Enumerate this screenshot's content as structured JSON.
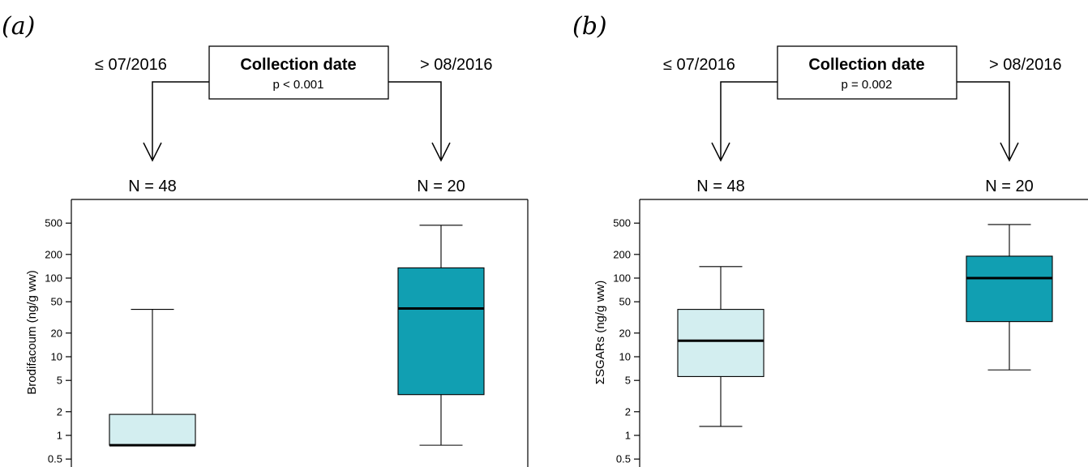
{
  "panels": [
    {
      "letter": "(a)",
      "tree": {
        "node_title": "Collection date",
        "node_p": "p < 0.001",
        "left_label": "≤ 07/2016",
        "right_label": "> 08/2016",
        "left_n": "N = 48",
        "right_n": "N = 20"
      }
    },
    {
      "letter": "(b)",
      "tree": {
        "node_title": "Collection date",
        "node_p": "p = 0.002",
        "left_label": "≤ 07/2016",
        "right_label": "> 08/2016",
        "left_n": "N = 48",
        "right_n": "N = 20"
      }
    }
  ],
  "colors": {
    "light_box": "#d3eef0",
    "dark_box": "#119fb2",
    "line": "#000000"
  },
  "chart_data": [
    {
      "type": "box",
      "ylabel": "Brodifacoum (ng/g ww)",
      "yscale": "log",
      "ylim": [
        0.42,
        820
      ],
      "yticks": [
        0.5,
        1,
        2,
        5,
        10,
        20,
        50,
        100,
        200,
        500
      ],
      "ytick_labels": [
        "0.5",
        "1",
        "2",
        "5",
        "10",
        "20",
        "50",
        "100",
        "200",
        "500"
      ],
      "groups": [
        {
          "label": "≤ 07/2016",
          "min": 0.75,
          "q1": 0.75,
          "median": 0.75,
          "q3": 1.85,
          "max": 40,
          "fill": "light"
        },
        {
          "label": "> 08/2016",
          "min": 0.75,
          "q1": 3.3,
          "median": 41,
          "q3": 135,
          "max": 470,
          "fill": "dark"
        }
      ]
    },
    {
      "type": "box",
      "ylabel": "ΣSGARs (ng/g ww)",
      "yscale": "log",
      "ylim": [
        0.42,
        820
      ],
      "yticks": [
        0.5,
        1,
        2,
        5,
        10,
        20,
        50,
        100,
        200,
        500
      ],
      "ytick_labels": [
        "0.5",
        "1",
        "2",
        "5",
        "10",
        "20",
        "50",
        "100",
        "200",
        "500"
      ],
      "groups": [
        {
          "label": "≤ 07/2016",
          "min": 1.3,
          "q1": 5.6,
          "median": 16,
          "q3": 40,
          "max": 140,
          "fill": "light"
        },
        {
          "label": "> 08/2016",
          "min": 6.8,
          "q1": 28,
          "median": 100,
          "q3": 190,
          "max": 480,
          "fill": "dark"
        }
      ]
    }
  ]
}
